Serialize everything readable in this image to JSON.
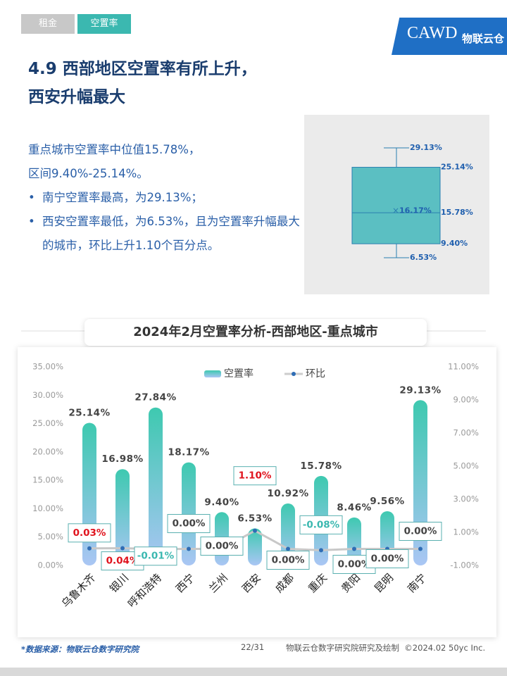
{
  "header": {
    "tabs": [
      "租金",
      "空置率"
    ],
    "logo": "CAWD",
    "logo_sub": "物联云仓"
  },
  "title": [
    "4.9 西部地区空置率有所上升，",
    "西安升幅最大"
  ],
  "body": {
    "lines": [
      "重点城市空置率中位值15.78%，",
      "区间9.40%-25.14%。"
    ],
    "bullets": [
      "南宁空置率最高，为29.13%；",
      "西安空置率最低，为6.53%，且为空置率升幅最大的城市，环比上升1.10个百分点。"
    ]
  },
  "boxplot": {
    "max": 29.13,
    "q3": 25.14,
    "mean": 16.17,
    "median": 15.78,
    "q1": 9.4,
    "min": 6.53,
    "labels": {
      "max": "29.13%",
      "q3": "25.14%",
      "mean": "16.17%",
      "median": "15.78%",
      "q1": "9.40%",
      "min": "6.53%"
    }
  },
  "chart_data": {
    "type": "bar",
    "title": "2024年2月空置率分析-西部地区-重点城市",
    "categories": [
      "乌鲁木齐",
      "银川",
      "呼和浩特",
      "西宁",
      "兰州",
      "西安",
      "成都",
      "重庆",
      "贵阳",
      "昆明",
      "南宁"
    ],
    "series": [
      {
        "name": "空置率",
        "type": "bar",
        "color": "#3ec9b0",
        "values": [
          25.14,
          16.98,
          27.84,
          18.17,
          9.4,
          6.53,
          10.92,
          15.78,
          8.46,
          9.56,
          29.13
        ],
        "value_labels": [
          "25.14%",
          "16.98%",
          "27.84%",
          "18.17%",
          "9.40%",
          "6.53%",
          "10.92%",
          "15.78%",
          "8.46%",
          "9.56%",
          "29.13%"
        ]
      },
      {
        "name": "环比",
        "type": "line",
        "axis": "y2",
        "color": "#2f6db5",
        "values": [
          0.03,
          0.04,
          -0.01,
          0,
          0,
          1.1,
          0,
          -0.08,
          0,
          0,
          0
        ],
        "value_labels": [
          "0.03%",
          "0.04%",
          "-0.01%",
          "0.00%",
          "0.00%",
          "1.10%",
          "0.00%",
          "-0.08%",
          "0.00%",
          "0.00%",
          "0.00%"
        ]
      }
    ],
    "ylim": [
      0,
      35
    ],
    "yticks": [
      {
        "value": 0,
        "label": "0.00%"
      },
      {
        "value": 5,
        "label": "5.00%"
      },
      {
        "value": 10,
        "label": "10.00%"
      },
      {
        "value": 15,
        "label": "15.00%"
      },
      {
        "value": 20,
        "label": "20.00%"
      },
      {
        "value": 25,
        "label": "25.00%"
      },
      {
        "value": 30,
        "label": "30.00%"
      },
      {
        "value": 35,
        "label": "35.00%"
      }
    ],
    "y2lim": [
      -1,
      11
    ],
    "y2ticks": [
      {
        "value": -1,
        "label": "-1.00%"
      },
      {
        "value": 1,
        "label": "1.00%"
      },
      {
        "value": 3,
        "label": "3.00%"
      },
      {
        "value": 5,
        "label": "5.00%"
      },
      {
        "value": 7,
        "label": "7.00%"
      },
      {
        "value": 9,
        "label": "9.00%"
      },
      {
        "value": 11,
        "label": "11.00%"
      }
    ]
  },
  "footer": {
    "source": "*数据来源：物联云仓数字研究院",
    "page": "22/31",
    "credit": "物联云仓数字研究院研究及绘制  ©2024.02 50yc Inc."
  }
}
